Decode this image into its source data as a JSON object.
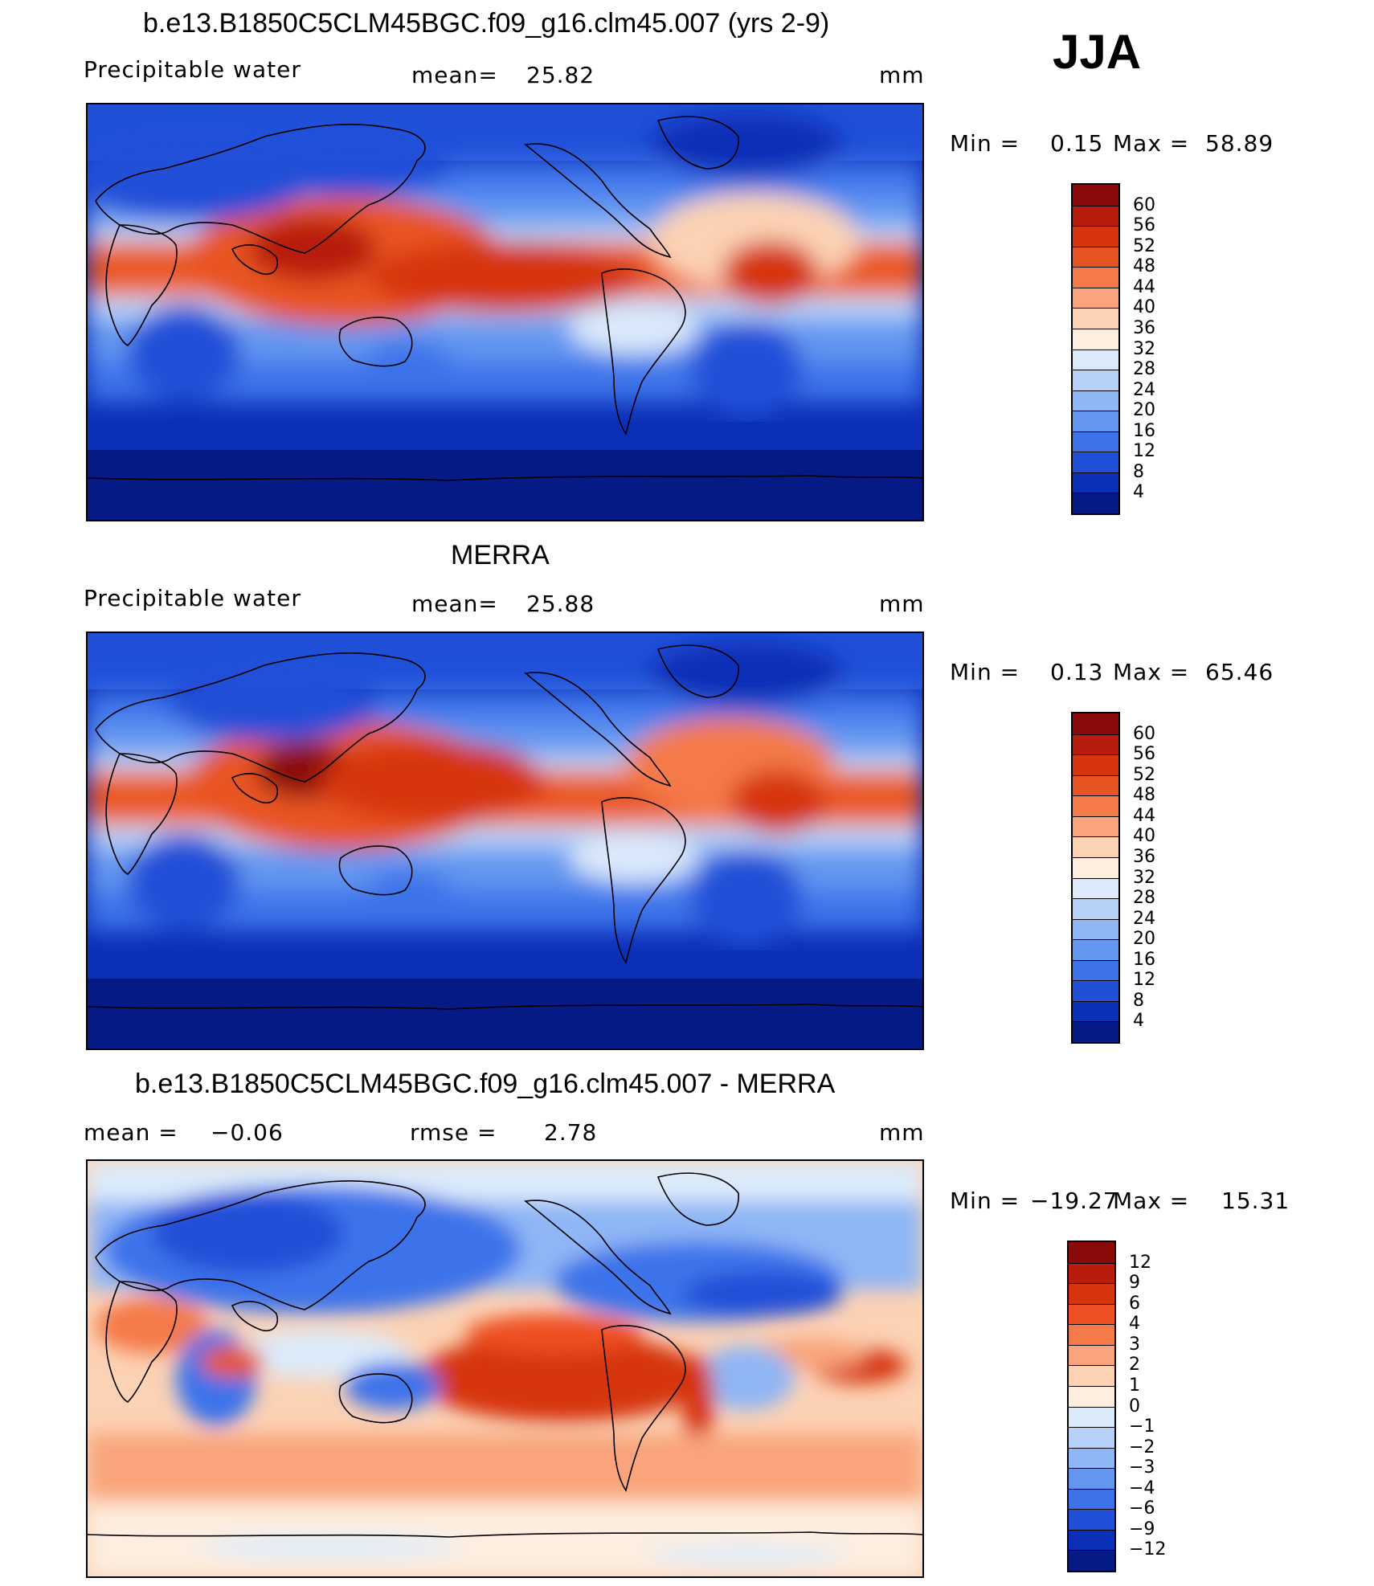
{
  "season": "JJA",
  "panels": [
    {
      "id": "model",
      "title": "b.e13.B1850C5CLM45BGC.f09_g16.clm45.007 (yrs 2-9)",
      "left_label": "Precipitable  water",
      "stat1_label": "mean=",
      "stat1_value": "25.82",
      "stat2_label": "",
      "stat2_value": "",
      "units": "mm",
      "min_label": "Min  =",
      "min_value": "0.15",
      "max_label": "Max  =",
      "max_value": "58.89",
      "colorbar": {
        "colors": [
          "#8b0a0a",
          "#b81c0c",
          "#d63510",
          "#e85424",
          "#f47a4a",
          "#f9a47c",
          "#fcd2b4",
          "#fdeee0",
          "#dbe9fb",
          "#b6d2f8",
          "#8fb6f5",
          "#6496f0",
          "#3c73ea",
          "#2050d8",
          "#0c2fb8",
          "#061a86"
        ],
        "ticks": [
          "60",
          "56",
          "52",
          "48",
          "44",
          "40",
          "36",
          "32",
          "28",
          "24",
          "20",
          "16",
          "12",
          "8",
          "4"
        ]
      }
    },
    {
      "id": "obs",
      "title": "MERRA",
      "left_label": "Precipitable  water",
      "stat1_label": "mean=",
      "stat1_value": "25.88",
      "stat2_label": "",
      "stat2_value": "",
      "units": "mm",
      "min_label": "Min  =",
      "min_value": "0.13",
      "max_label": "Max  =",
      "max_value": "65.46",
      "colorbar": {
        "colors": [
          "#8b0a0a",
          "#b81c0c",
          "#d63510",
          "#e85424",
          "#f47a4a",
          "#f9a47c",
          "#fcd2b4",
          "#fdeee0",
          "#dbe9fb",
          "#b6d2f8",
          "#8fb6f5",
          "#6496f0",
          "#3c73ea",
          "#2050d8",
          "#0c2fb8",
          "#061a86"
        ],
        "ticks": [
          "60",
          "56",
          "52",
          "48",
          "44",
          "40",
          "36",
          "32",
          "28",
          "24",
          "20",
          "16",
          "12",
          "8",
          "4"
        ]
      }
    },
    {
      "id": "diff",
      "title": "b.e13.B1850C5CLM45BGC.f09_g16.clm45.007 - MERRA",
      "left_label": "mean  =",
      "left_value": "−0.06",
      "stat1_label": "",
      "stat1_value": "",
      "stat2_label": "rmse  =",
      "stat2_value": "2.78",
      "units": "mm",
      "min_label": "Min  =",
      "min_value": "−19.27",
      "max_label": "Max  =",
      "max_value": "15.31",
      "colorbar": {
        "colors": [
          "#8b0a0a",
          "#b81c0c",
          "#d63510",
          "#ee4f24",
          "#f47a4a",
          "#f9a47c",
          "#fcd2b4",
          "#fdeee0",
          "#dcebfa",
          "#b6d2f8",
          "#8fb6f5",
          "#6496f0",
          "#3c73ea",
          "#2050d8",
          "#0c2fb8",
          "#061a86"
        ],
        "ticks": [
          "12",
          "9",
          "6",
          "4",
          "3",
          "2",
          "1",
          "0",
          "−1",
          "−2",
          "−3",
          "−4",
          "−6",
          "−9",
          "−12"
        ]
      }
    }
  ]
}
